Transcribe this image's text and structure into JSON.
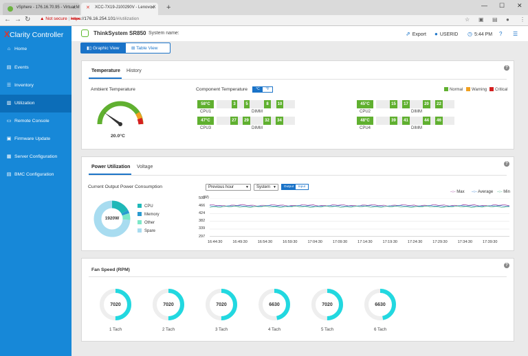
{
  "browser": {
    "tabs": [
      {
        "title": "vSphere - 176.16.70.95 - Virtual M"
      },
      {
        "title": "XCC-7X19-J100290V - Lenovo X"
      }
    ],
    "address": {
      "not_secure": "Not secure",
      "scheme": "https",
      "host": "://176.16.254.101",
      "path": "/#/utilization"
    }
  },
  "app": {
    "brand_x": "X",
    "brand_rest": "Clarity Controller",
    "server_name": "ThinkSystem SR850",
    "system_name_label": "System name:",
    "export_label": "Export",
    "user_label": "USERID",
    "time_label": "5:44 PM"
  },
  "sidebar": {
    "items": [
      {
        "label": "Home",
        "icon": "home-icon"
      },
      {
        "label": "Events",
        "icon": "events-icon"
      },
      {
        "label": "Inventory",
        "icon": "inventory-icon"
      },
      {
        "label": "Utilization",
        "icon": "utilization-icon"
      },
      {
        "label": "Remote Console",
        "icon": "console-icon"
      },
      {
        "label": "Firmware Update",
        "icon": "firmware-icon"
      },
      {
        "label": "Server Configuration",
        "icon": "server-config-icon"
      },
      {
        "label": "BMC Configuration",
        "icon": "bmc-config-icon"
      }
    ]
  },
  "view_toggle": {
    "graphic": "Graphic View",
    "table": "Table View"
  },
  "temperature": {
    "tabs": [
      "Temperature",
      "History"
    ],
    "ambient_label": "Ambient Temperature",
    "ambient_value": "20.0°C",
    "gauge_needle": 0.2,
    "component_label": "Component Temperature",
    "unit_c": "°C",
    "unit_f": "°F",
    "legend": [
      {
        "label": "Normal",
        "color": "#60b030"
      },
      {
        "label": "Warning",
        "color": "#f0a020"
      },
      {
        "label": "Critical",
        "color": "#d42020"
      }
    ],
    "cpus": [
      {
        "label": "CPU1",
        "temp": "58°C",
        "dimm_label": "DIMM",
        "dimms": [
          "3",
          "5",
          "8",
          "10"
        ]
      },
      {
        "label": "CPU3",
        "temp": "47°C",
        "dimm_label": "DIMM",
        "dimms": [
          "27",
          "29",
          "32",
          "34"
        ]
      },
      {
        "label": "CPU2",
        "temp": "45°C",
        "dimm_label": "DIMM",
        "dimms": [
          "15",
          "17",
          "20",
          "22"
        ]
      },
      {
        "label": "CPU4",
        "temp": "48°C",
        "dimm_label": "DIMM",
        "dimms": [
          "39",
          "41",
          "44",
          "46"
        ]
      }
    ]
  },
  "power": {
    "tabs": [
      "Power Utilization",
      "Voltage"
    ],
    "consumption_label": "Current Output Power Consumption",
    "period_select": "Previous hour",
    "scope_select": "System",
    "output_label": "Output",
    "input_label": "Input",
    "donut_center": "1920W",
    "donut": [
      {
        "label": "CPU",
        "value": 0.17,
        "color": "#1fb8b8"
      },
      {
        "label": "Memory",
        "value": 0.03,
        "color": "#2a9ad0"
      },
      {
        "label": "Other",
        "value": 0.06,
        "color": "#7de8c8"
      },
      {
        "label": "Spare",
        "value": 0.74,
        "color": "#a8dcf0"
      }
    ]
  },
  "chart_data": {
    "type": "line",
    "ylabel": "(W)",
    "y_ticks": [
      "509",
      "466",
      "424",
      "382",
      "339",
      "297"
    ],
    "ylim": [
      297,
      509
    ],
    "x_ticks": [
      "16:44:30",
      "16:49:30",
      "16:54:30",
      "16:59:30",
      "17:04:30",
      "17:09:30",
      "17:14:30",
      "17:19:30",
      "17:24:30",
      "17:29:30",
      "17:34:30",
      "17:39:30"
    ],
    "legend_placement": "top-right",
    "series": [
      {
        "name": "Max",
        "color": "#a040a0",
        "level": 470,
        "amplitude": 4
      },
      {
        "name": "Average",
        "color": "#2a7ad0",
        "level": 466,
        "amplitude": 3
      },
      {
        "name": "Min",
        "color": "#40b080",
        "level": 462,
        "amplitude": 4
      }
    ]
  },
  "fans": {
    "title": "Fan Speed (RPM)",
    "arc_color": "#22d8e0",
    "track_color": "#eeeeee",
    "items": [
      {
        "label": "1 Tach",
        "rpm": "7020",
        "fill": 0.5
      },
      {
        "label": "2 Tach",
        "rpm": "7020",
        "fill": 0.5
      },
      {
        "label": "3 Tach",
        "rpm": "7020",
        "fill": 0.5
      },
      {
        "label": "4 Tach",
        "rpm": "6630",
        "fill": 0.47
      },
      {
        "label": "5 Tach",
        "rpm": "7020",
        "fill": 0.5
      },
      {
        "label": "6 Tach",
        "rpm": "6630",
        "fill": 0.47
      }
    ]
  }
}
